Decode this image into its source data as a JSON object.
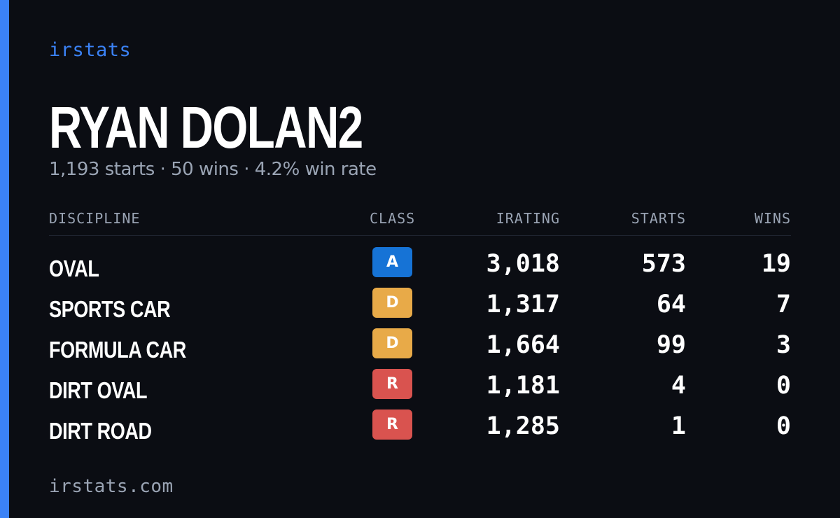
{
  "colors": {
    "background": "#0b0d13",
    "accent": "#3b82f6",
    "muted": "#9aa4b4",
    "class_a": "#1673d6",
    "class_d": "#e8aa48",
    "class_r": "#d9534f"
  },
  "brand": "irstats",
  "player": {
    "name": "RYAN DOLAN2",
    "summary": "1,193 starts · 50 wins · 4.2% win rate"
  },
  "table": {
    "headers": {
      "discipline": "DISCIPLINE",
      "class": "CLASS",
      "irating": "IRATING",
      "starts": "STARTS",
      "wins": "WINS"
    },
    "rows": [
      {
        "discipline": "OVAL",
        "class": "A",
        "class_color": "#1673d6",
        "irating": "3,018",
        "starts": "573",
        "wins": "19"
      },
      {
        "discipline": "SPORTS CAR",
        "class": "D",
        "class_color": "#e8aa48",
        "irating": "1,317",
        "starts": "64",
        "wins": "7"
      },
      {
        "discipline": "FORMULA CAR",
        "class": "D",
        "class_color": "#e8aa48",
        "irating": "1,664",
        "starts": "99",
        "wins": "3"
      },
      {
        "discipline": "DIRT OVAL",
        "class": "R",
        "class_color": "#d9534f",
        "irating": "1,181",
        "starts": "4",
        "wins": "0"
      },
      {
        "discipline": "DIRT ROAD",
        "class": "R",
        "class_color": "#d9534f",
        "irating": "1,285",
        "starts": "1",
        "wins": "0"
      }
    ]
  },
  "footer": "irstats.com"
}
